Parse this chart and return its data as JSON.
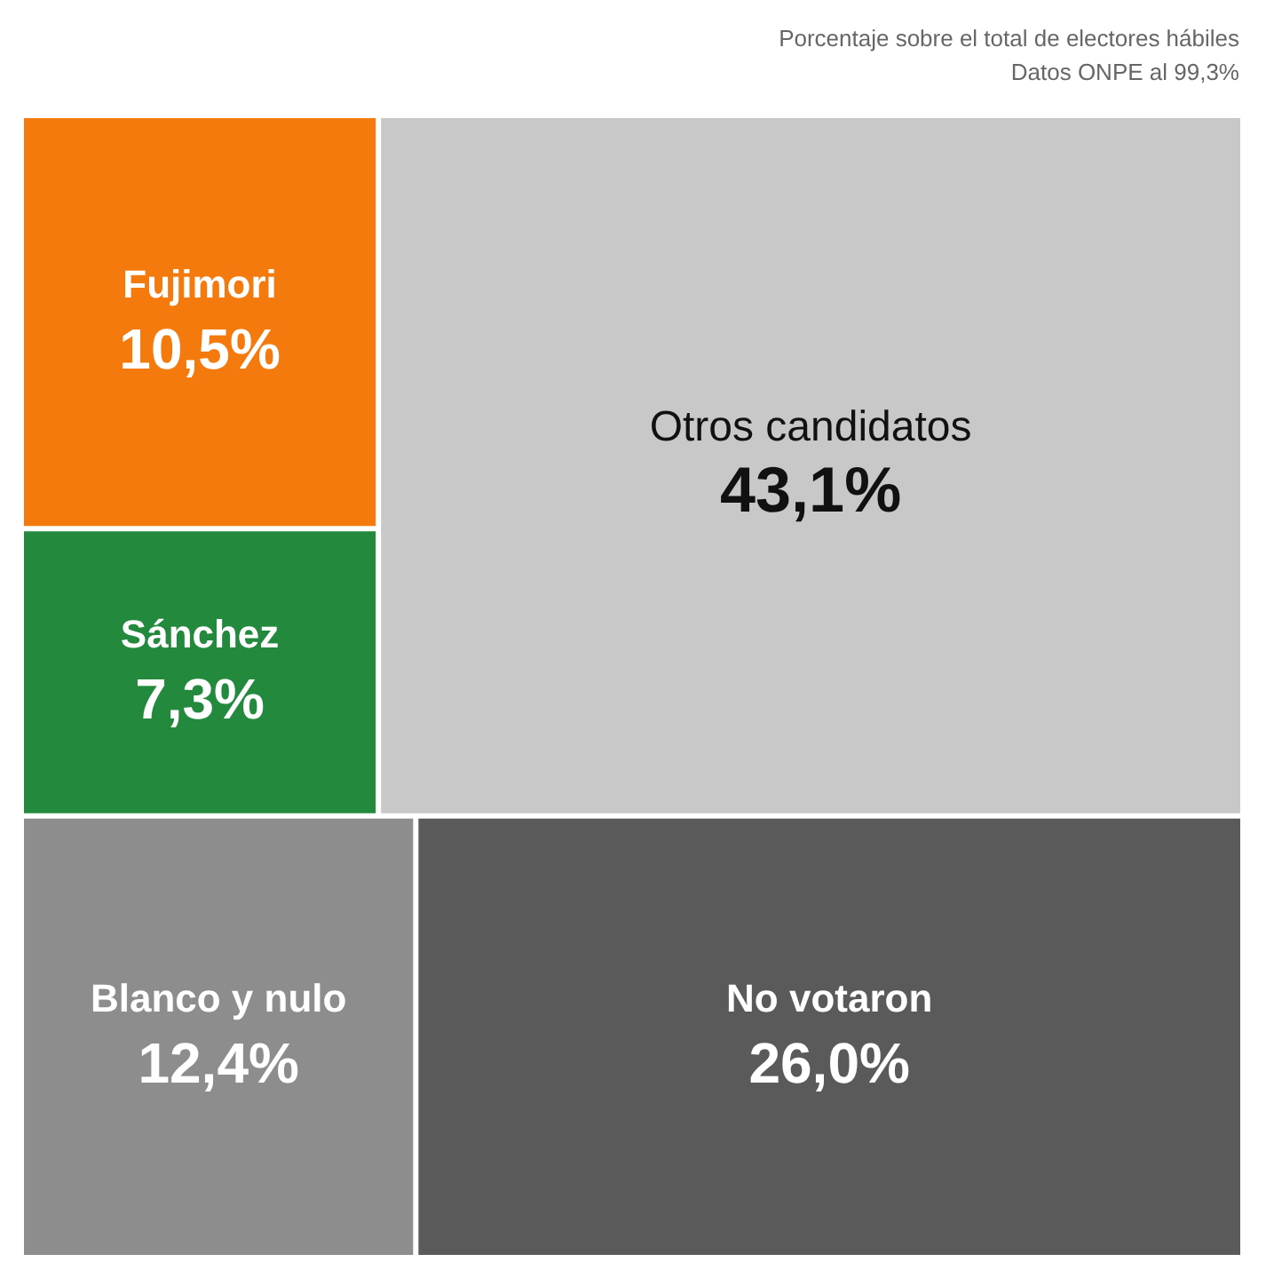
{
  "chart_data": {
    "type": "other",
    "subtitle": "Porcentaje sobre el total de electores hábiles",
    "annotations": [
      "Datos ONPE al 99,3%"
    ],
    "categories": [
      "Fujimori",
      "Sánchez",
      "Otros candidatos",
      "Blanco y nulo",
      "No votaron"
    ],
    "values": [
      10.5,
      7.3,
      43.1,
      12.4,
      26.0
    ],
    "value_labels": [
      "10,5%",
      "7,3%",
      "43,1%",
      "12,4%",
      "26,0%"
    ],
    "colors": [
      "#f47a0e",
      "#23893d",
      "#c8c8c8",
      "#8d8d8d",
      "#5a5a5a"
    ]
  }
}
